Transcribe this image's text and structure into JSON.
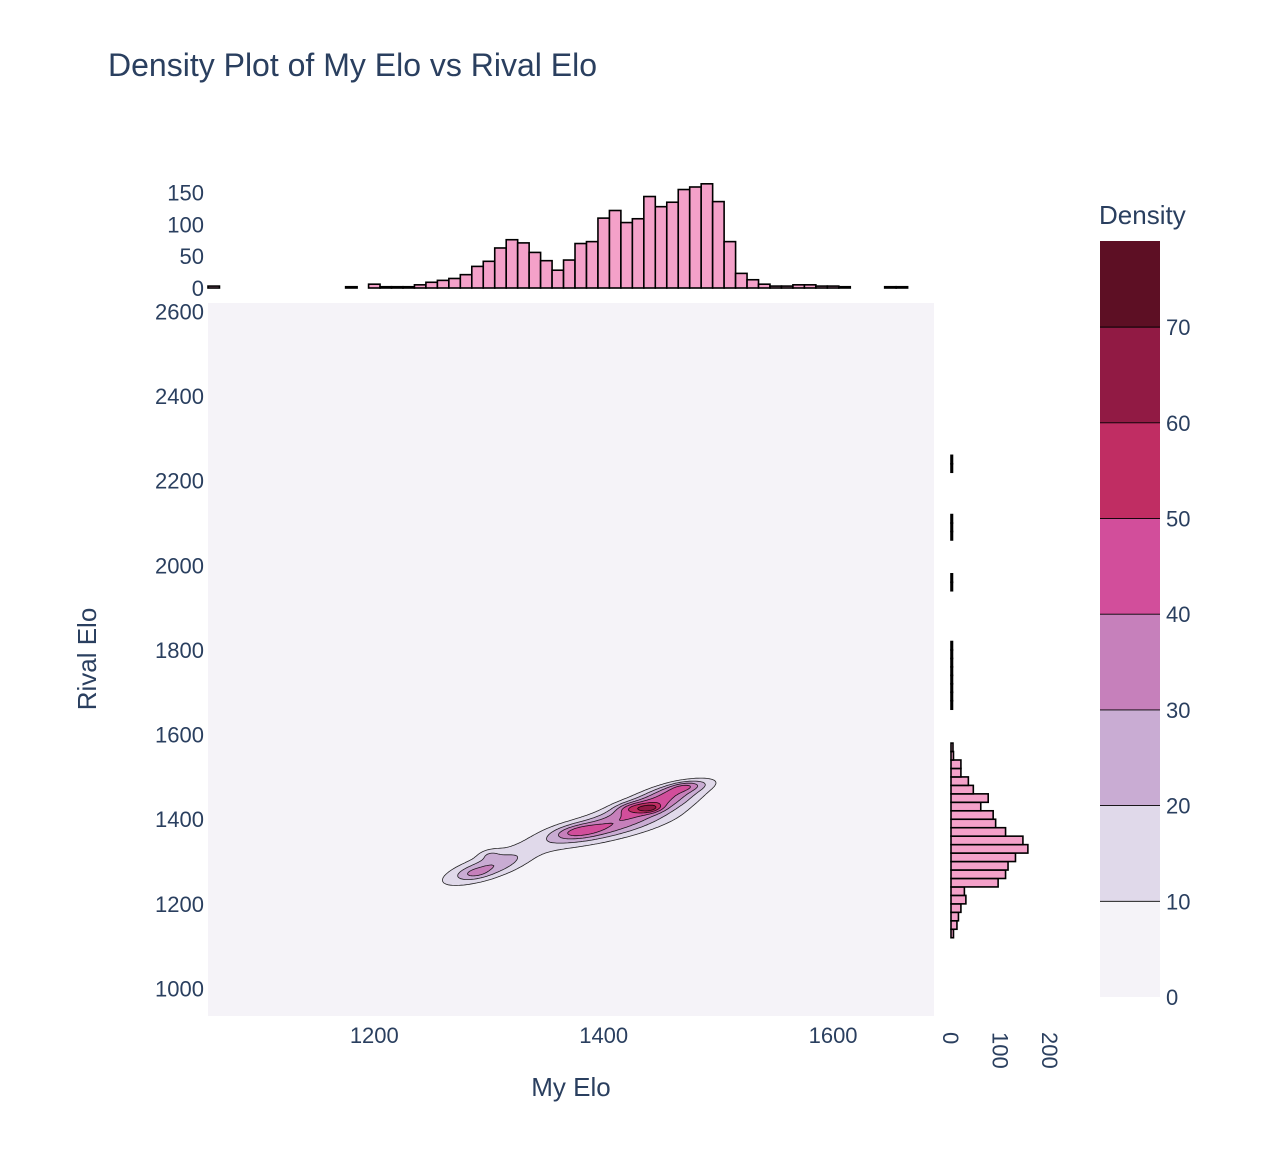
{
  "chart_data": {
    "type": "contour",
    "title": "Density Plot of My Elo vs Rival Elo",
    "xlabel": "My Elo",
    "ylabel": "Rival Elo",
    "xlim": [
      1055,
      1688
    ],
    "ylim": [
      935,
      2620
    ],
    "x_ticks": [
      1200,
      1400,
      1600
    ],
    "y_ticks": [
      1000,
      1200,
      1400,
      1600,
      1800,
      2000,
      2200,
      2400,
      2600
    ],
    "colorbar": {
      "title": "Density",
      "range": [
        0,
        79
      ],
      "ticks": [
        0,
        10,
        20,
        30,
        40,
        50,
        60,
        70
      ],
      "levels": [
        0,
        10,
        20,
        30,
        40,
        50,
        60,
        70,
        79
      ],
      "colors": [
        "#f5f3f8",
        "#e0d9ea",
        "#c9acd3",
        "#c680bb",
        "#d24e9b",
        "#c02d63",
        "#911a44",
        "#5d0f24"
      ]
    },
    "density_peaks": [
      {
        "x": 1298,
        "y": 1285,
        "sx": 26,
        "sy": 28,
        "rho": 0.7,
        "amp": 30
      },
      {
        "x": 1288,
        "y": 1272,
        "sx": 8,
        "sy": 8,
        "rho": 0.3,
        "amp": 8
      },
      {
        "x": 1300,
        "y": 1318,
        "sx": 7,
        "sy": 9,
        "rho": 0.3,
        "amp": 10
      },
      {
        "x": 1400,
        "y": 1380,
        "sx": 42,
        "sy": 32,
        "rho": 0.72,
        "amp": 34
      },
      {
        "x": 1378,
        "y": 1372,
        "sx": 14,
        "sy": 12,
        "rho": 0.4,
        "amp": 18
      },
      {
        "x": 1445,
        "y": 1440,
        "sx": 26,
        "sy": 26,
        "rho": 0.7,
        "amp": 40
      },
      {
        "x": 1425,
        "y": 1428,
        "sx": 10,
        "sy": 9,
        "rho": 0.3,
        "amp": 14
      },
      {
        "x": 1441,
        "y": 1425,
        "sx": 7,
        "sy": 7,
        "rho": 0.3,
        "amp": 20
      },
      {
        "x": 1468,
        "y": 1475,
        "sx": 18,
        "sy": 14,
        "rho": 0.6,
        "amp": 22
      },
      {
        "x": 1470,
        "y": 1478,
        "sx": 8,
        "sy": 7,
        "rho": 0.3,
        "amp": 8
      }
    ],
    "x_histogram": {
      "bin_start": 1055,
      "bin_width": 10,
      "counts": [
        3,
        0,
        0,
        0,
        0,
        0,
        0,
        0,
        0,
        0,
        0,
        0,
        2,
        0,
        6,
        2,
        2,
        2,
        5,
        9,
        12,
        15,
        21,
        34,
        42,
        63,
        76,
        71,
        56,
        43,
        28,
        44,
        70,
        73,
        110,
        122,
        103,
        109,
        144,
        128,
        135,
        155,
        159,
        164,
        136,
        73,
        23,
        13,
        6,
        3,
        3,
        5,
        5,
        3,
        3,
        2,
        0,
        0,
        0,
        2,
        2,
        0,
        0,
        0,
        2,
        2,
        2,
        2
      ]
    },
    "x_histogram_ticks": [
      0,
      50,
      100,
      150
    ],
    "x_histogram_range": [
      0,
      170
    ],
    "y_histogram": {
      "bin_start": 1120,
      "bin_width": 20,
      "counts": [
        5,
        12,
        15,
        20,
        30,
        27,
        95,
        110,
        115,
        130,
        155,
        145,
        110,
        90,
        85,
        60,
        75,
        45,
        35,
        20,
        20,
        5,
        4,
        0,
        0,
        0,
        0,
        3,
        3,
        3,
        3,
        3,
        3,
        3,
        3,
        0,
        0,
        0,
        0,
        0,
        0,
        3,
        3,
        0,
        0,
        0,
        0,
        3,
        3,
        3,
        0,
        0,
        0,
        0,
        0,
        3,
        3
      ]
    },
    "y_histogram_ticks": [
      0,
      100,
      200
    ],
    "y_histogram_range": [
      0,
      250
    ],
    "histogram_color": "#f4a1c9",
    "plot_background": "#f5f3f8"
  }
}
